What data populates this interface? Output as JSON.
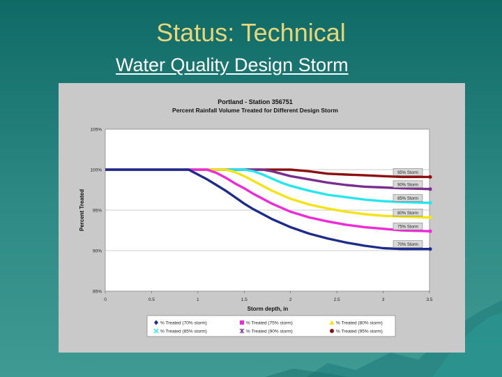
{
  "slide": {
    "title": "Status: Technical",
    "subtitle": "Water Quality Design Storm"
  },
  "chart_data": {
    "type": "line",
    "title": "Portland - Station 356751",
    "subtitle": "Percent Rainfall Volume Treated for Different Design Storm",
    "xlabel": "Storm depth, in",
    "ylabel": "Percent Treated",
    "xlim": [
      0,
      3.5
    ],
    "ylim": [
      85,
      105
    ],
    "xticks": [
      "0",
      "0.5",
      "1",
      "1.5",
      "2",
      "2.5",
      "3",
      "3.5"
    ],
    "yticks": [
      "85%",
      "90%",
      "95%",
      "100%",
      "105%"
    ],
    "grid": "horizontal",
    "legend_position": "bottom",
    "x": [
      0,
      0.5,
      0.8,
      0.9,
      1.0,
      1.1,
      1.2,
      1.3,
      1.4,
      1.5,
      1.6,
      1.7,
      1.8,
      1.9,
      2.0,
      2.2,
      2.4,
      2.6,
      2.8,
      3.0,
      3.2,
      3.5
    ],
    "series": [
      {
        "name": "% Treated (70% storm)",
        "color": "#1c2b8c",
        "marker": "diamond",
        "label": "70% Storm",
        "values": [
          100,
          100,
          100,
          100,
          99.4,
          98.8,
          98.1,
          97.4,
          96.6,
          95.8,
          95.1,
          94.5,
          93.9,
          93.4,
          92.9,
          92.1,
          91.5,
          91.0,
          90.6,
          90.3,
          90.2,
          90.2
        ]
      },
      {
        "name": "% Treated (75% storm)",
        "color": "#ee2ad8",
        "marker": "square",
        "label": "75% Storm",
        "values": [
          100,
          100,
          100,
          100,
          100,
          100,
          99.6,
          99.0,
          98.3,
          97.7,
          97.0,
          96.4,
          95.8,
          95.3,
          94.8,
          94.1,
          93.6,
          93.2,
          92.9,
          92.7,
          92.5,
          92.4
        ]
      },
      {
        "name": "% Treated (80% storm)",
        "color": "#f5e316",
        "marker": "triangle",
        "label": "80% Storm",
        "values": [
          100,
          100,
          100,
          100,
          100,
          100,
          100,
          100,
          99.7,
          99.2,
          98.6,
          98.0,
          97.4,
          96.9,
          96.4,
          95.7,
          95.2,
          94.8,
          94.5,
          94.3,
          94.2,
          94.1
        ]
      },
      {
        "name": "% Treated (85% storm)",
        "color": "#25e6ef",
        "marker": "x",
        "label": "85% Storm",
        "values": [
          100,
          100,
          100,
          100,
          100,
          100,
          100,
          100,
          100,
          100,
          99.8,
          99.4,
          98.9,
          98.4,
          98.0,
          97.4,
          96.9,
          96.6,
          96.3,
          96.1,
          96.0,
          95.9
        ]
      },
      {
        "name": "% Treated (90% storm)",
        "color": "#7a2f8f",
        "marker": "star",
        "label": "90% Storm",
        "values": [
          100,
          100,
          100,
          100,
          100,
          100,
          100,
          100,
          100,
          100,
          100,
          100,
          99.8,
          99.5,
          99.2,
          98.8,
          98.4,
          98.1,
          97.9,
          97.8,
          97.7,
          97.6
        ]
      },
      {
        "name": "% Treated (95% storm)",
        "color": "#8c1010",
        "marker": "circle",
        "label": "95% Storm",
        "values": [
          100,
          100,
          100,
          100,
          100,
          100,
          100,
          100,
          100,
          100,
          100,
          100,
          100,
          100,
          100,
          99.8,
          99.5,
          99.4,
          99.3,
          99.2,
          99.1,
          99.1
        ]
      }
    ]
  }
}
